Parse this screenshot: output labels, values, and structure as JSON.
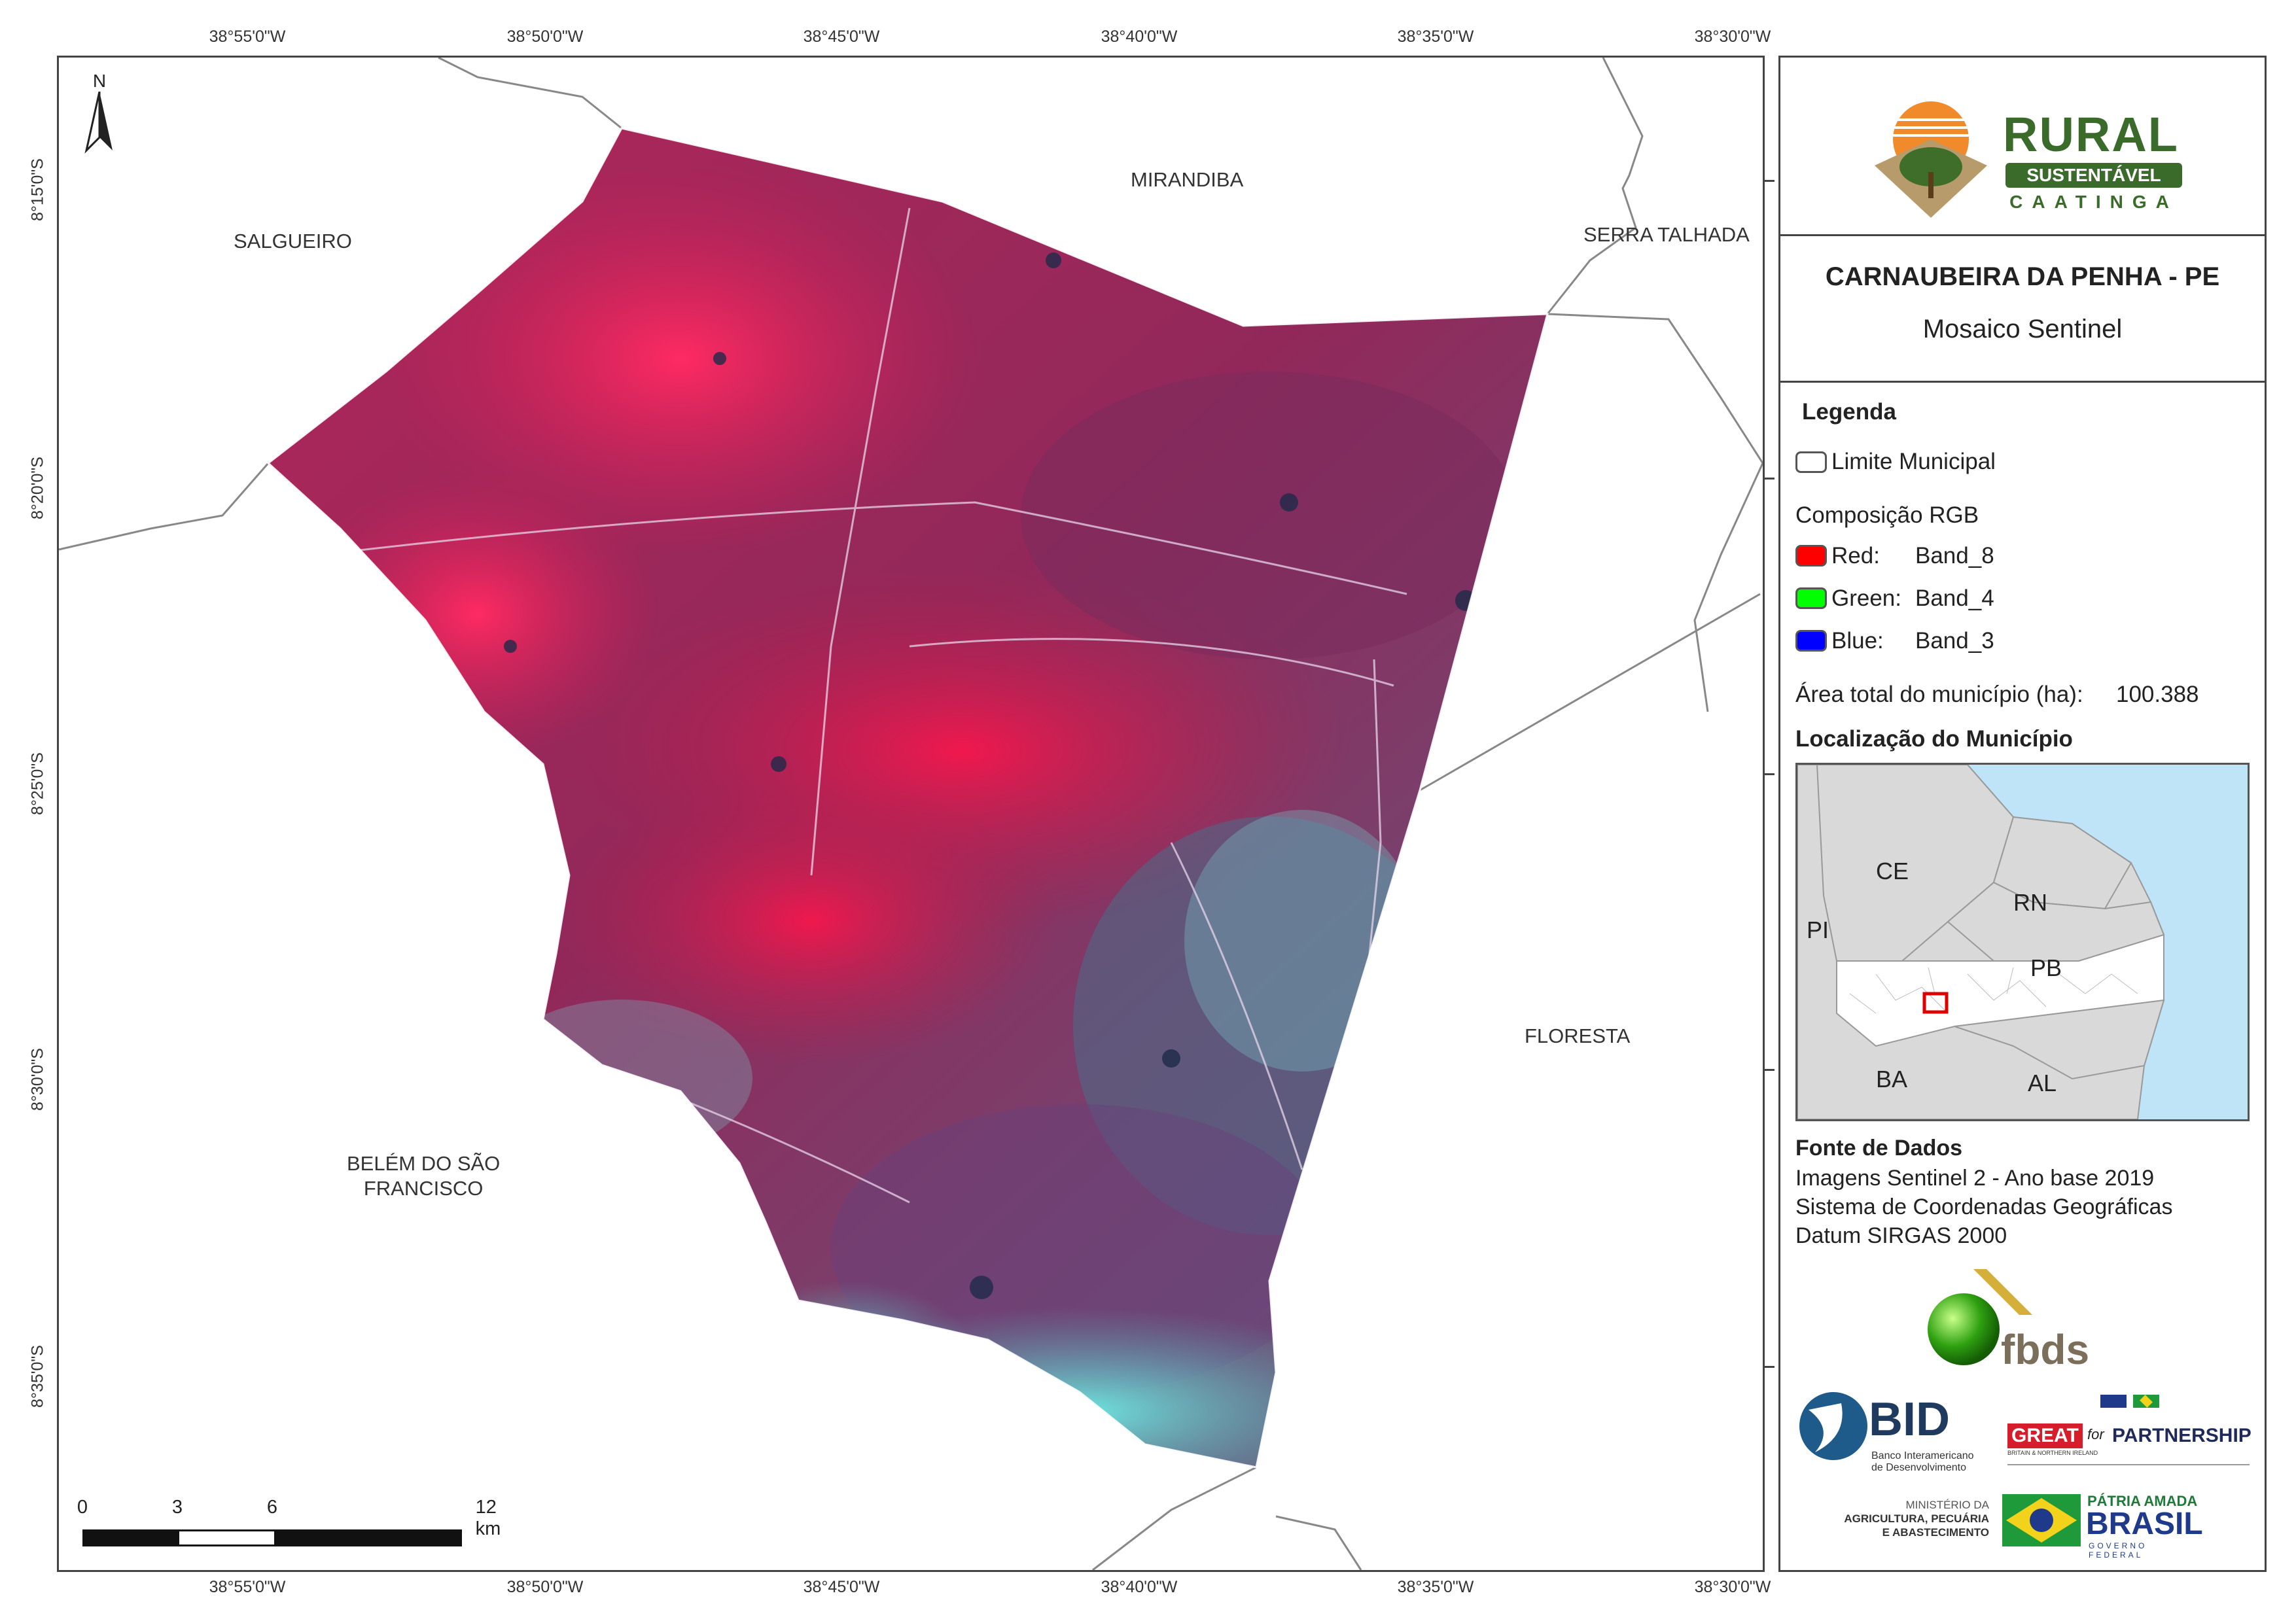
{
  "coords": {
    "top": [
      "38°55'0\"W",
      "38°50'0\"W",
      "38°45'0\"W",
      "38°40'0\"W",
      "38°35'0\"W",
      "38°30'0\"W"
    ],
    "bottom": [
      "38°55'0\"W",
      "38°50'0\"W",
      "38°45'0\"W",
      "38°40'0\"W",
      "38°35'0\"W",
      "38°30'0\"W"
    ],
    "left": [
      "8°15'0\"S",
      "8°20'0\"S",
      "8°25'0\"S",
      "8°30'0\"S",
      "8°35'0\"S"
    ]
  },
  "neighbors": {
    "salgueiro": "SALGUEIRO",
    "mirandiba": "MIRANDIBA",
    "serra_talhada": "SERRA TALHADA",
    "floresta": "FLORESTA",
    "belem_line1": "BELÉM DO SÃO",
    "belem_line2": "FRANCISCO"
  },
  "north_arrow": "N",
  "scale_bar": {
    "labels": [
      "0",
      "3",
      "6",
      "12 km"
    ]
  },
  "logo": {
    "rural": "RURAL",
    "sustentavel": "SUSTENTÁVEL",
    "caatinga": "CAATINGA"
  },
  "title": "CARNAUBEIRA DA PENHA - PE",
  "subtitle": "Mosaico Sentinel",
  "legend": {
    "heading": "Legenda",
    "boundary": "Limite Municipal",
    "rgb_heading": "Composição RGB",
    "red_label": "Red:",
    "red_band": "Band_8",
    "green_label": "Green:",
    "green_band": "Band_4",
    "blue_label": "Blue:",
    "blue_band": "Band_3",
    "area_label": "Área total do município (ha):",
    "area_value": "100.388",
    "location_heading": "Localização do Município",
    "colors": {
      "red": "#ff0000",
      "green": "#00ff00",
      "blue": "#0000ff"
    }
  },
  "location_map": {
    "states": [
      "CE",
      "RN",
      "PI",
      "PB",
      "BA",
      "AL"
    ],
    "highlight_color": "#e00000",
    "ocean_color": "#bfe4f7"
  },
  "sources": {
    "heading": "Fonte de Dados",
    "line1": "Imagens Sentinel 2 - Ano base 2019",
    "line2": "Sistema de Coordenadas Geográficas",
    "line3": "Datum SIRGAS 2000"
  },
  "partners": {
    "fbds": "fbds",
    "bid": "BID",
    "bid_sub1": "Banco Interamericano",
    "bid_sub2": "de Desenvolvimento",
    "great": "GREAT",
    "for": "for",
    "partnership": "PARTNERSHIP",
    "great_sub": "BRITAIN & NORTHERN IRELAND",
    "ministerio1": "MINISTÉRIO DA",
    "ministerio2": "AGRICULTURA, PECUÁRIA",
    "ministerio3": "E ABASTECIMENTO",
    "patria": "PÁTRIA AMADA",
    "brasil": "BRASIL",
    "governo": "GOVERNO FEDERAL"
  }
}
